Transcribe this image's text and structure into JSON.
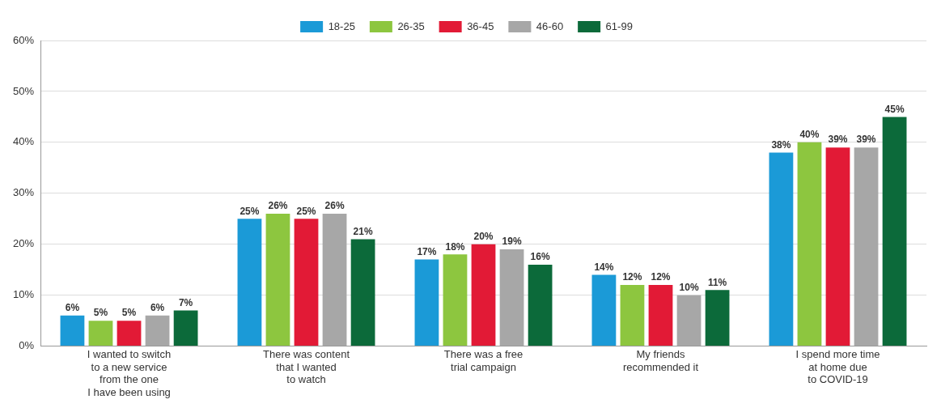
{
  "chart_data": {
    "type": "bar",
    "categories": [
      "I wanted to switch\nto a new service\nfrom the one\nI have been using",
      "There was content\nthat I wanted\nto watch",
      "There was a free\ntrial campaign",
      "My friends\nrecommended it",
      "I spend more time\nat home due\nto COVID-19"
    ],
    "series": [
      {
        "name": "18-25",
        "color": "#1b9ad7",
        "values": [
          6,
          25,
          17,
          14,
          38
        ],
        "value_labels": [
          "6%",
          "25%",
          "17%",
          "14%",
          "38%"
        ]
      },
      {
        "name": "26-35",
        "color": "#8dc63f",
        "values": [
          5,
          26,
          18,
          12,
          40
        ],
        "value_labels": [
          "5%",
          "26%",
          "18%",
          "12%",
          "40%"
        ]
      },
      {
        "name": "36-45",
        "color": "#e21a36",
        "values": [
          5,
          25,
          20,
          12,
          39
        ],
        "value_labels": [
          "5%",
          "25%",
          "20%",
          "12%",
          "39%"
        ]
      },
      {
        "name": "46-60",
        "color": "#a7a7a7",
        "values": [
          6,
          26,
          19,
          10,
          39
        ],
        "value_labels": [
          "6%",
          "26%",
          "19%",
          "10%",
          "39%"
        ]
      },
      {
        "name": "61-99",
        "color": "#0c6a3a",
        "values": [
          7,
          21,
          16,
          11,
          45
        ],
        "value_labels": [
          "7%",
          "21%",
          "16%",
          "11%",
          "45%"
        ]
      }
    ],
    "ylim": [
      0,
      60
    ],
    "yticks": [
      {
        "value": 0,
        "label": "0%"
      },
      {
        "value": 10,
        "label": "10%"
      },
      {
        "value": 20,
        "label": "20%"
      },
      {
        "value": 30,
        "label": "30%"
      },
      {
        "value": 40,
        "label": "40%"
      },
      {
        "value": 50,
        "label": "50%"
      },
      {
        "value": 60,
        "label": "60%"
      }
    ],
    "grid": "y",
    "legend": "top"
  }
}
